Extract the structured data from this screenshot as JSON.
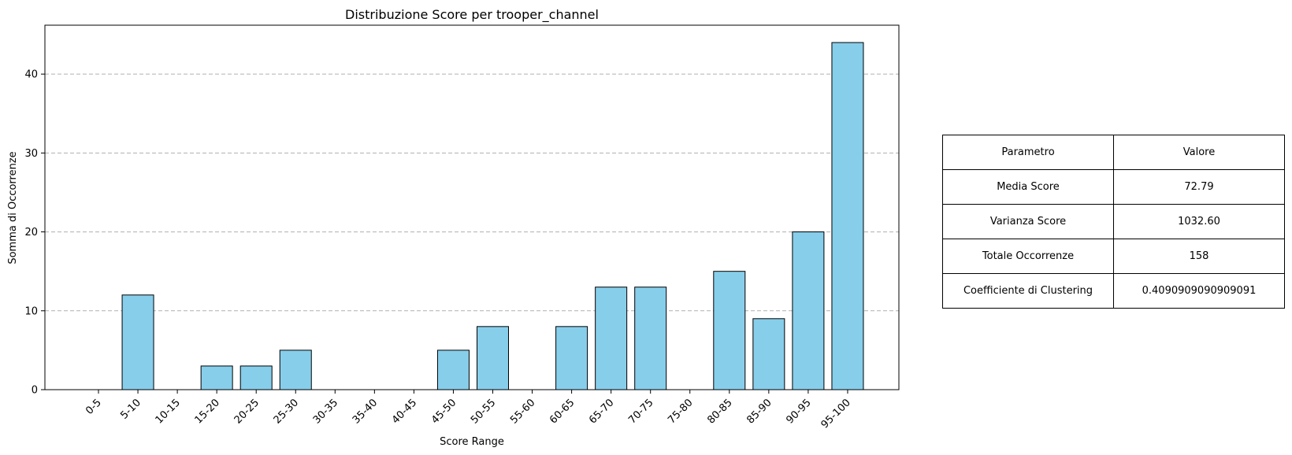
{
  "chart_data": {
    "type": "bar",
    "title": "Distribuzione Score per trooper_channel",
    "xlabel": "Score Range",
    "ylabel": "Somma di Occorrenze",
    "categories": [
      "0-5",
      "5-10",
      "10-15",
      "15-20",
      "20-25",
      "25-30",
      "30-35",
      "35-40",
      "40-45",
      "45-50",
      "50-55",
      "55-60",
      "60-65",
      "65-70",
      "70-75",
      "75-80",
      "80-85",
      "85-90",
      "90-95",
      "95-100"
    ],
    "values": [
      0,
      12,
      0,
      3,
      3,
      5,
      0,
      0,
      0,
      5,
      8,
      0,
      8,
      13,
      13,
      0,
      15,
      9,
      20,
      44
    ],
    "ylim": [
      0,
      46.2
    ],
    "yticks": [
      0,
      10,
      20,
      30,
      40
    ],
    "grid": "y-dashed",
    "bar_color": "#87ceeb",
    "bar_edge_color": "#000000",
    "grid_color": "#b0b0b0"
  },
  "table": {
    "header": [
      "Parametro",
      "Valore"
    ],
    "rows": [
      [
        "Media Score",
        "72.79"
      ],
      [
        "Varianza Score",
        "1032.60"
      ],
      [
        "Totale Occorrenze",
        "158"
      ],
      [
        "Coefficiente di Clustering",
        "0.4090909090909091"
      ]
    ]
  }
}
